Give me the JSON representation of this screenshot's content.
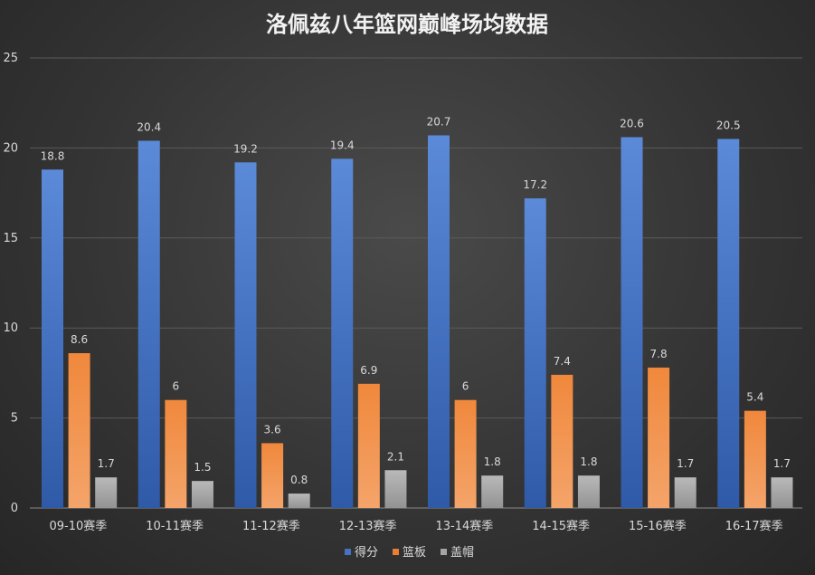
{
  "chart_data": {
    "type": "bar",
    "title": "洛佩兹八年篮网巅峰场均数据",
    "categories": [
      "09-10赛季",
      "10-11赛季",
      "11-12赛季",
      "12-13赛季",
      "13-14赛季",
      "14-15赛季",
      "15-16赛季",
      "16-17赛季"
    ],
    "series": [
      {
        "name": "得分",
        "color": "#4472c4",
        "values": [
          18.8,
          20.4,
          19.2,
          19.4,
          20.7,
          17.2,
          20.6,
          20.5
        ]
      },
      {
        "name": "篮板",
        "color": "#ed7d31",
        "values": [
          8.6,
          6,
          3.6,
          6.9,
          6,
          7.4,
          7.8,
          5.4
        ]
      },
      {
        "name": "盖帽",
        "color": "#a5a5a5",
        "values": [
          1.7,
          1.5,
          0.8,
          2.1,
          1.8,
          1.8,
          1.7,
          1.7
        ]
      }
    ],
    "ylim": [
      0,
      25
    ],
    "yticks": [
      0,
      5,
      10,
      15,
      20,
      25
    ],
    "grid": true,
    "legend_position": "bottom"
  }
}
